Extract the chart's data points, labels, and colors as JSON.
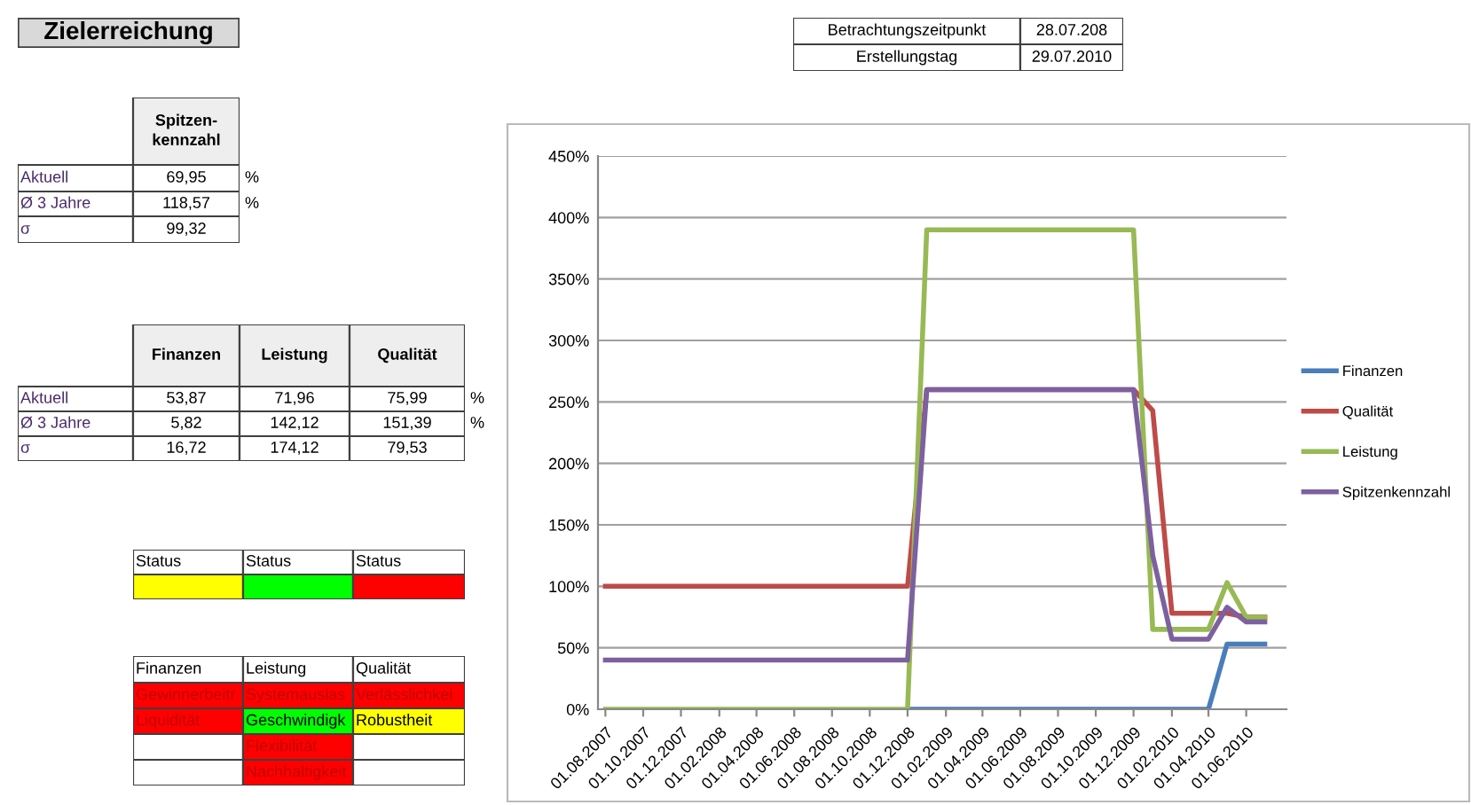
{
  "chart_data": [
    {
      "type": "other",
      "title": "Zielerreichung"
    },
    {
      "type": "other",
      "cell_labels": [
        [
          null,
          "Spitzen-\nkennzahl"
        ],
        [
          "Aktuell",
          "69,95"
        ],
        [
          "Ø 3 Jahre",
          "118,57"
        ],
        [
          "σ",
          "99,32"
        ]
      ],
      "colors": [
        [
          null,
          "#eeeeee"
        ],
        [
          null,
          null
        ],
        [
          null,
          null
        ],
        [
          null,
          null
        ]
      ],
      "annotations": [
        "%",
        "%"
      ]
    },
    {
      "type": "other",
      "cell_labels": [
        [
          null,
          "Finanzen",
          "Leistung",
          "Qualität"
        ],
        [
          "Aktuell",
          "53,87",
          "71,96",
          "75,99"
        ],
        [
          "Ø 3 Jahre",
          "5,82",
          "142,12",
          "151,39"
        ],
        [
          "σ",
          "16,72",
          "174,12",
          "79,53"
        ]
      ],
      "colors": [
        [
          null,
          "#eeeeee",
          "#eeeeee",
          "#eeeeee"
        ],
        [
          null,
          null,
          null,
          null
        ],
        [
          null,
          null,
          null,
          null
        ],
        [
          null,
          null,
          null,
          null
        ]
      ],
      "annotations": [
        "%",
        "%"
      ]
    },
    {
      "type": "other",
      "cell_labels": [
        [
          "Status",
          "Status",
          "Status"
        ],
        [
          null,
          null,
          null
        ]
      ],
      "colors": [
        [
          null,
          null,
          null
        ],
        [
          "#ffff00",
          "#00ff00",
          "#ff0000"
        ]
      ]
    },
    {
      "type": "other",
      "cell_labels": [
        [
          "Finanzen",
          "Leistung",
          "Qualität"
        ],
        [
          "Gewinnerbeitr",
          "Systemauslas",
          "Verlässlichkei"
        ],
        [
          "Liquidität",
          "Geschwindigk",
          "Robustheit"
        ],
        [
          null,
          "Flexibilität",
          null
        ],
        [
          null,
          "Nachhaltigkeit",
          null
        ]
      ],
      "colors": [
        [
          null,
          null,
          null
        ],
        [
          "#ff0000",
          "#ff0000",
          "#ff0000"
        ],
        [
          "#ff0000",
          "#00ff00",
          "#ffff00"
        ],
        [
          "#ffffff",
          "#ff0000",
          "#ffffff"
        ],
        [
          "#ffffff",
          "#ff0000",
          "#ffffff"
        ]
      ]
    },
    {
      "type": "other",
      "cell_labels": [
        [
          "Betrachtungszeitpunkt",
          "28.07.208"
        ],
        [
          "Erstellungstag",
          "29.07.2010"
        ]
      ]
    },
    {
      "type": "line",
      "x": [
        "2007-08-01",
        "2007-09-01",
        "2007-10-01",
        "2007-11-01",
        "2007-12-01",
        "2008-01-01",
        "2008-02-01",
        "2008-03-01",
        "2008-04-01",
        "2008-05-01",
        "2008-06-01",
        "2008-07-01",
        "2008-08-01",
        "2008-09-01",
        "2008-10-01",
        "2008-11-01",
        "2008-12-01",
        "2009-01-01",
        "2009-02-01",
        "2009-03-01",
        "2009-04-01",
        "2009-05-01",
        "2009-06-01",
        "2009-07-01",
        "2009-08-01",
        "2009-09-01",
        "2009-10-01",
        "2009-11-01",
        "2009-12-01",
        "2010-01-01",
        "2010-02-01",
        "2010-03-01",
        "2010-04-01",
        "2010-05-01",
        "2010-06-01",
        "2010-07-01"
      ],
      "series": [
        {
          "name": "Finanzen",
          "color": "#4a7ebb",
          "values": [
            null,
            null,
            null,
            null,
            null,
            null,
            null,
            null,
            null,
            null,
            null,
            null,
            null,
            null,
            null,
            null,
            0,
            0,
            0,
            0,
            0,
            0,
            0,
            0,
            0,
            0,
            0,
            0,
            0,
            0,
            0,
            0,
            0,
            53,
            53,
            53
          ]
        },
        {
          "name": "Qualität",
          "color": "#be4b48",
          "values": [
            100,
            100,
            100,
            100,
            100,
            100,
            100,
            100,
            100,
            100,
            100,
            100,
            100,
            100,
            100,
            100,
            100,
            260,
            260,
            260,
            260,
            260,
            260,
            260,
            260,
            260,
            260,
            260,
            260,
            243,
            78,
            78,
            78,
            78,
            75,
            75
          ]
        },
        {
          "name": "Leistung",
          "color": "#98b954",
          "values": [
            0,
            0,
            0,
            0,
            0,
            0,
            0,
            0,
            0,
            0,
            0,
            0,
            0,
            0,
            0,
            0,
            0,
            390,
            390,
            390,
            390,
            390,
            390,
            390,
            390,
            390,
            390,
            390,
            390,
            65,
            65,
            65,
            65,
            103,
            75,
            75
          ]
        },
        {
          "name": "Spitzenkennzahl",
          "color": "#7d60a0",
          "values": [
            40,
            40,
            40,
            40,
            40,
            40,
            40,
            40,
            40,
            40,
            40,
            40,
            40,
            40,
            40,
            40,
            40,
            260,
            260,
            260,
            260,
            260,
            260,
            260,
            260,
            260,
            260,
            260,
            260,
            125,
            57,
            57,
            57,
            83,
            71,
            71
          ]
        }
      ],
      "xlim": [
        "2007-07-20",
        "2010-08-05"
      ],
      "xticks": [
        {
          "value": "2007-08-01",
          "label": "01.08.2007"
        },
        {
          "value": "2007-10-01",
          "label": "01.10.2007"
        },
        {
          "value": "2007-12-01",
          "label": "01.12.2007"
        },
        {
          "value": "2008-02-01",
          "label": "01.02.2008"
        },
        {
          "value": "2008-04-01",
          "label": "01.04.2008"
        },
        {
          "value": "2008-06-01",
          "label": "01.06.2008"
        },
        {
          "value": "2008-08-01",
          "label": "01.08.2008"
        },
        {
          "value": "2008-10-01",
          "label": "01.10.2008"
        },
        {
          "value": "2008-12-01",
          "label": "01.12.2008"
        },
        {
          "value": "2009-02-01",
          "label": "01.02.2009"
        },
        {
          "value": "2009-04-01",
          "label": "01.04.2009"
        },
        {
          "value": "2009-06-01",
          "label": "01.06.2009"
        },
        {
          "value": "2009-08-01",
          "label": "01.08.2009"
        },
        {
          "value": "2009-10-01",
          "label": "01.10.2009"
        },
        {
          "value": "2009-12-01",
          "label": "01.12.2009"
        },
        {
          "value": "2010-02-01",
          "label": "01.02.2010"
        },
        {
          "value": "2010-04-01",
          "label": "01.04.2010"
        },
        {
          "value": "2010-06-01",
          "label": "01.06.2010"
        }
      ],
      "ylim": [
        0,
        450
      ],
      "yticks": [
        {
          "value": 0,
          "label": "0%"
        },
        {
          "value": 50,
          "label": "50%"
        },
        {
          "value": 100,
          "label": "100%"
        },
        {
          "value": 150,
          "label": "150%"
        },
        {
          "value": 200,
          "label": "200%"
        },
        {
          "value": 250,
          "label": "250%"
        },
        {
          "value": 300,
          "label": "300%"
        },
        {
          "value": 350,
          "label": "350%"
        },
        {
          "value": 400,
          "label": "400%"
        },
        {
          "value": 450,
          "label": "450%"
        }
      ],
      "grid": "y",
      "legend": "right",
      "marker": "none",
      "line_style": "solid"
    }
  ]
}
